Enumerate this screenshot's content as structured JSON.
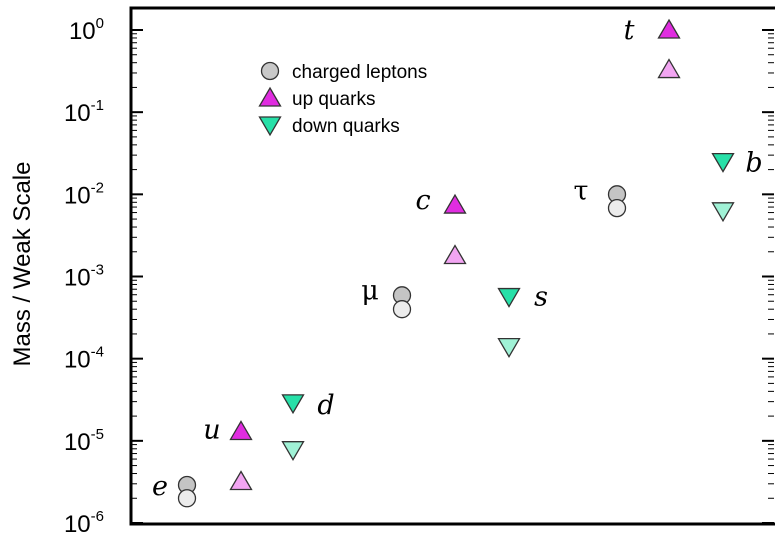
{
  "chart_data": {
    "type": "scatter",
    "ylabel": "Mass / Weak Scale",
    "yscale": "log",
    "ylim": [
      1e-06,
      1.5
    ],
    "yticks": [
      {
        "base": "10",
        "exp": "0"
      },
      {
        "base": "10",
        "exp": "-1"
      },
      {
        "base": "10",
        "exp": "-2"
      },
      {
        "base": "10",
        "exp": "-3"
      },
      {
        "base": "10",
        "exp": "-4"
      },
      {
        "base": "10",
        "exp": "-5"
      },
      {
        "base": "10",
        "exp": "-6"
      }
    ],
    "ytick_values": [
      1,
      0.1,
      0.01,
      0.001,
      0.0001,
      1e-05,
      1e-06
    ],
    "x_axis": "particle index (no tick labels)",
    "xlim": [
      0,
      12
    ],
    "legend": {
      "placement": "top-left",
      "entries": [
        {
          "label": "charged leptons",
          "marker": "circle",
          "color": "#c8c8c8"
        },
        {
          "label": "up quarks",
          "marker": "triangle-up",
          "color": "#e02de0"
        },
        {
          "label": "down quarks",
          "marker": "triangle-down",
          "color": "#27e0a8"
        }
      ]
    },
    "particles": [
      {
        "label": "e",
        "greek": false,
        "type": "lepton",
        "x": 1,
        "values": [
          2.9e-06,
          2e-06
        ],
        "colors": [
          "#c4c4c4",
          "#ececec"
        ]
      },
      {
        "label": "u",
        "greek": false,
        "type": "up",
        "x": 2,
        "values": [
          1.3e-05,
          3.2e-06
        ],
        "colors": [
          "#e02de0",
          "#f2a5f2"
        ]
      },
      {
        "label": "d",
        "greek": false,
        "type": "down",
        "x": 3,
        "values": [
          2.9e-05,
          7.8e-06
        ],
        "colors": [
          "#27e0a8",
          "#a0f2d6"
        ]
      },
      {
        "label": "μ",
        "greek": true,
        "type": "lepton",
        "x": 5,
        "values": [
          0.00059,
          0.0004
        ],
        "colors": [
          "#c4c4c4",
          "#ececec"
        ]
      },
      {
        "label": "c",
        "greek": false,
        "type": "up",
        "x": 6,
        "values": [
          0.0074,
          0.0018
        ],
        "colors": [
          "#e02de0",
          "#f2a5f2"
        ]
      },
      {
        "label": "s",
        "greek": false,
        "type": "down",
        "x": 7,
        "values": [
          0.00057,
          0.00014
        ],
        "colors": [
          "#27e0a8",
          "#a0f2d6"
        ]
      },
      {
        "label": "τ",
        "greek": true,
        "type": "lepton",
        "x": 9,
        "values": [
          0.01,
          0.0068
        ],
        "colors": [
          "#c4c4c4",
          "#ececec"
        ]
      },
      {
        "label": "t",
        "greek": false,
        "type": "up",
        "x": 10,
        "values": [
          1.0,
          0.33
        ],
        "colors": [
          "#e02de0",
          "#f2a5f2"
        ]
      },
      {
        "label": "b",
        "greek": false,
        "type": "down",
        "x": 11,
        "values": [
          0.025,
          0.0063
        ],
        "colors": [
          "#27e0a8",
          "#a0f2d6"
        ]
      }
    ],
    "grid": false
  }
}
